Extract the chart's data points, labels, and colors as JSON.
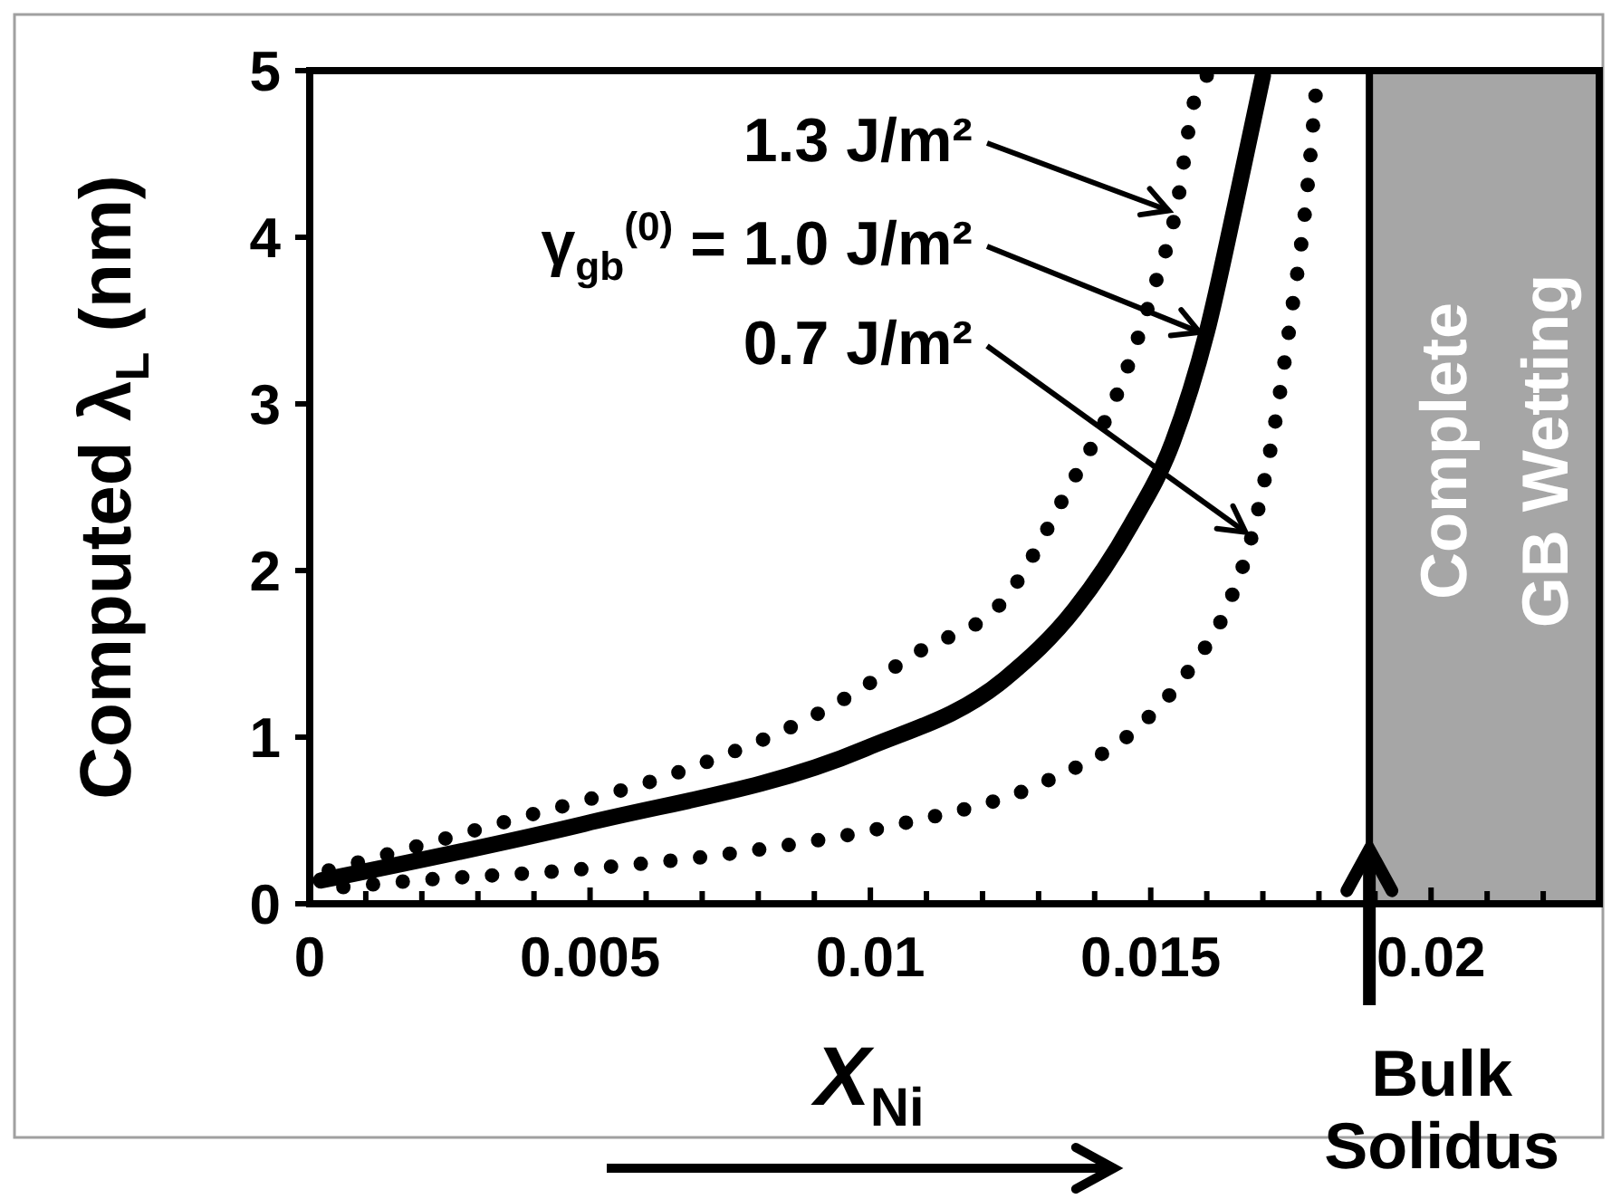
{
  "chart_data": {
    "type": "line",
    "xlabel": "X$_{Ni}$",
    "ylabel": "Computed λ$_{L}$ (nm)",
    "xlim": [
      0,
      0.023
    ],
    "ylim": [
      0,
      5
    ],
    "xticks": [
      0,
      {
        "value": 0.001,
        "label": null
      },
      {
        "value": 0.002,
        "label": null
      },
      {
        "value": 0.003,
        "label": null
      },
      {
        "value": 0.004,
        "label": null
      },
      0.005,
      {
        "value": 0.006,
        "label": null
      },
      {
        "value": 0.007,
        "label": null
      },
      {
        "value": 0.008,
        "label": null
      },
      {
        "value": 0.009,
        "label": null
      },
      0.01,
      {
        "value": 0.011,
        "label": null
      },
      {
        "value": 0.012,
        "label": null
      },
      {
        "value": 0.013,
        "label": null
      },
      {
        "value": 0.014,
        "label": null
      },
      0.015,
      {
        "value": 0.016,
        "label": null
      },
      {
        "value": 0.017,
        "label": null
      },
      {
        "value": 0.018,
        "label": null
      },
      {
        "value": 0.019,
        "label": null
      },
      0.02,
      {
        "value": 0.021,
        "label": null
      },
      {
        "value": 0.022,
        "label": null
      }
    ],
    "yticks": [
      0,
      1,
      2,
      3,
      4,
      5
    ],
    "grid": false,
    "marker": "none",
    "series": [
      {
        "color": "#000000",
        "line_style": "dotted",
        "x": [
          0.00034,
          0.00357,
          0.00675,
          0.00917,
          0.0109,
          0.0124,
          0.01353,
          0.01445,
          0.01508,
          0.01545,
          0.01577,
          0.016
        ],
        "values": [
          0.2,
          0.5,
          0.81,
          1.16,
          1.52,
          1.83,
          2.49,
          3.1,
          3.72,
          4.16,
          4.81,
          4.97
        ]
      },
      {
        "color": "#000000",
        "line_style": "solid",
        "x": [
          0.0002,
          0.0049,
          0.0099,
          0.0124,
          0.01365,
          0.01464,
          0.01539,
          0.016,
          0.0165,
          0.017
        ],
        "values": [
          0.14,
          0.48,
          0.93,
          1.35,
          1.77,
          2.27,
          2.77,
          3.43,
          4.18,
          4.97
        ]
      },
      {
        "color": "#000000",
        "line_style": "dotted",
        "x": [
          0.0006,
          0.0019,
          0.00458,
          0.0079,
          0.01055,
          0.0131,
          0.01484,
          0.0157,
          0.01639,
          0.01682,
          0.0172,
          0.0175,
          0.01776,
          0.01794
        ],
        "values": [
          0.1,
          0.14,
          0.2,
          0.32,
          0.48,
          0.73,
          1.08,
          1.41,
          1.8,
          2.23,
          2.85,
          3.52,
          4.18,
          4.85
        ]
      }
    ],
    "bands": [
      {
        "axis": "x",
        "from": 0.0189,
        "to": 0.023,
        "label": "Complete\nGB Wetting",
        "color": "#a6a6a6"
      }
    ],
    "annotations": [
      {
        "text": "1.3 J/m²",
        "x": 0.01545,
        "y": 4.16
      },
      {
        "text": "γ$_{gb}$$^{(0)}$ = 1.0 J/m²",
        "x": 0.016,
        "y": 3.43
      },
      {
        "text": "0.7 J/m²",
        "x": 0.01682,
        "y": 2.23
      },
      {
        "text": "Bulk\nSolidus",
        "x": 0.0189,
        "y": 0
      }
    ]
  }
}
